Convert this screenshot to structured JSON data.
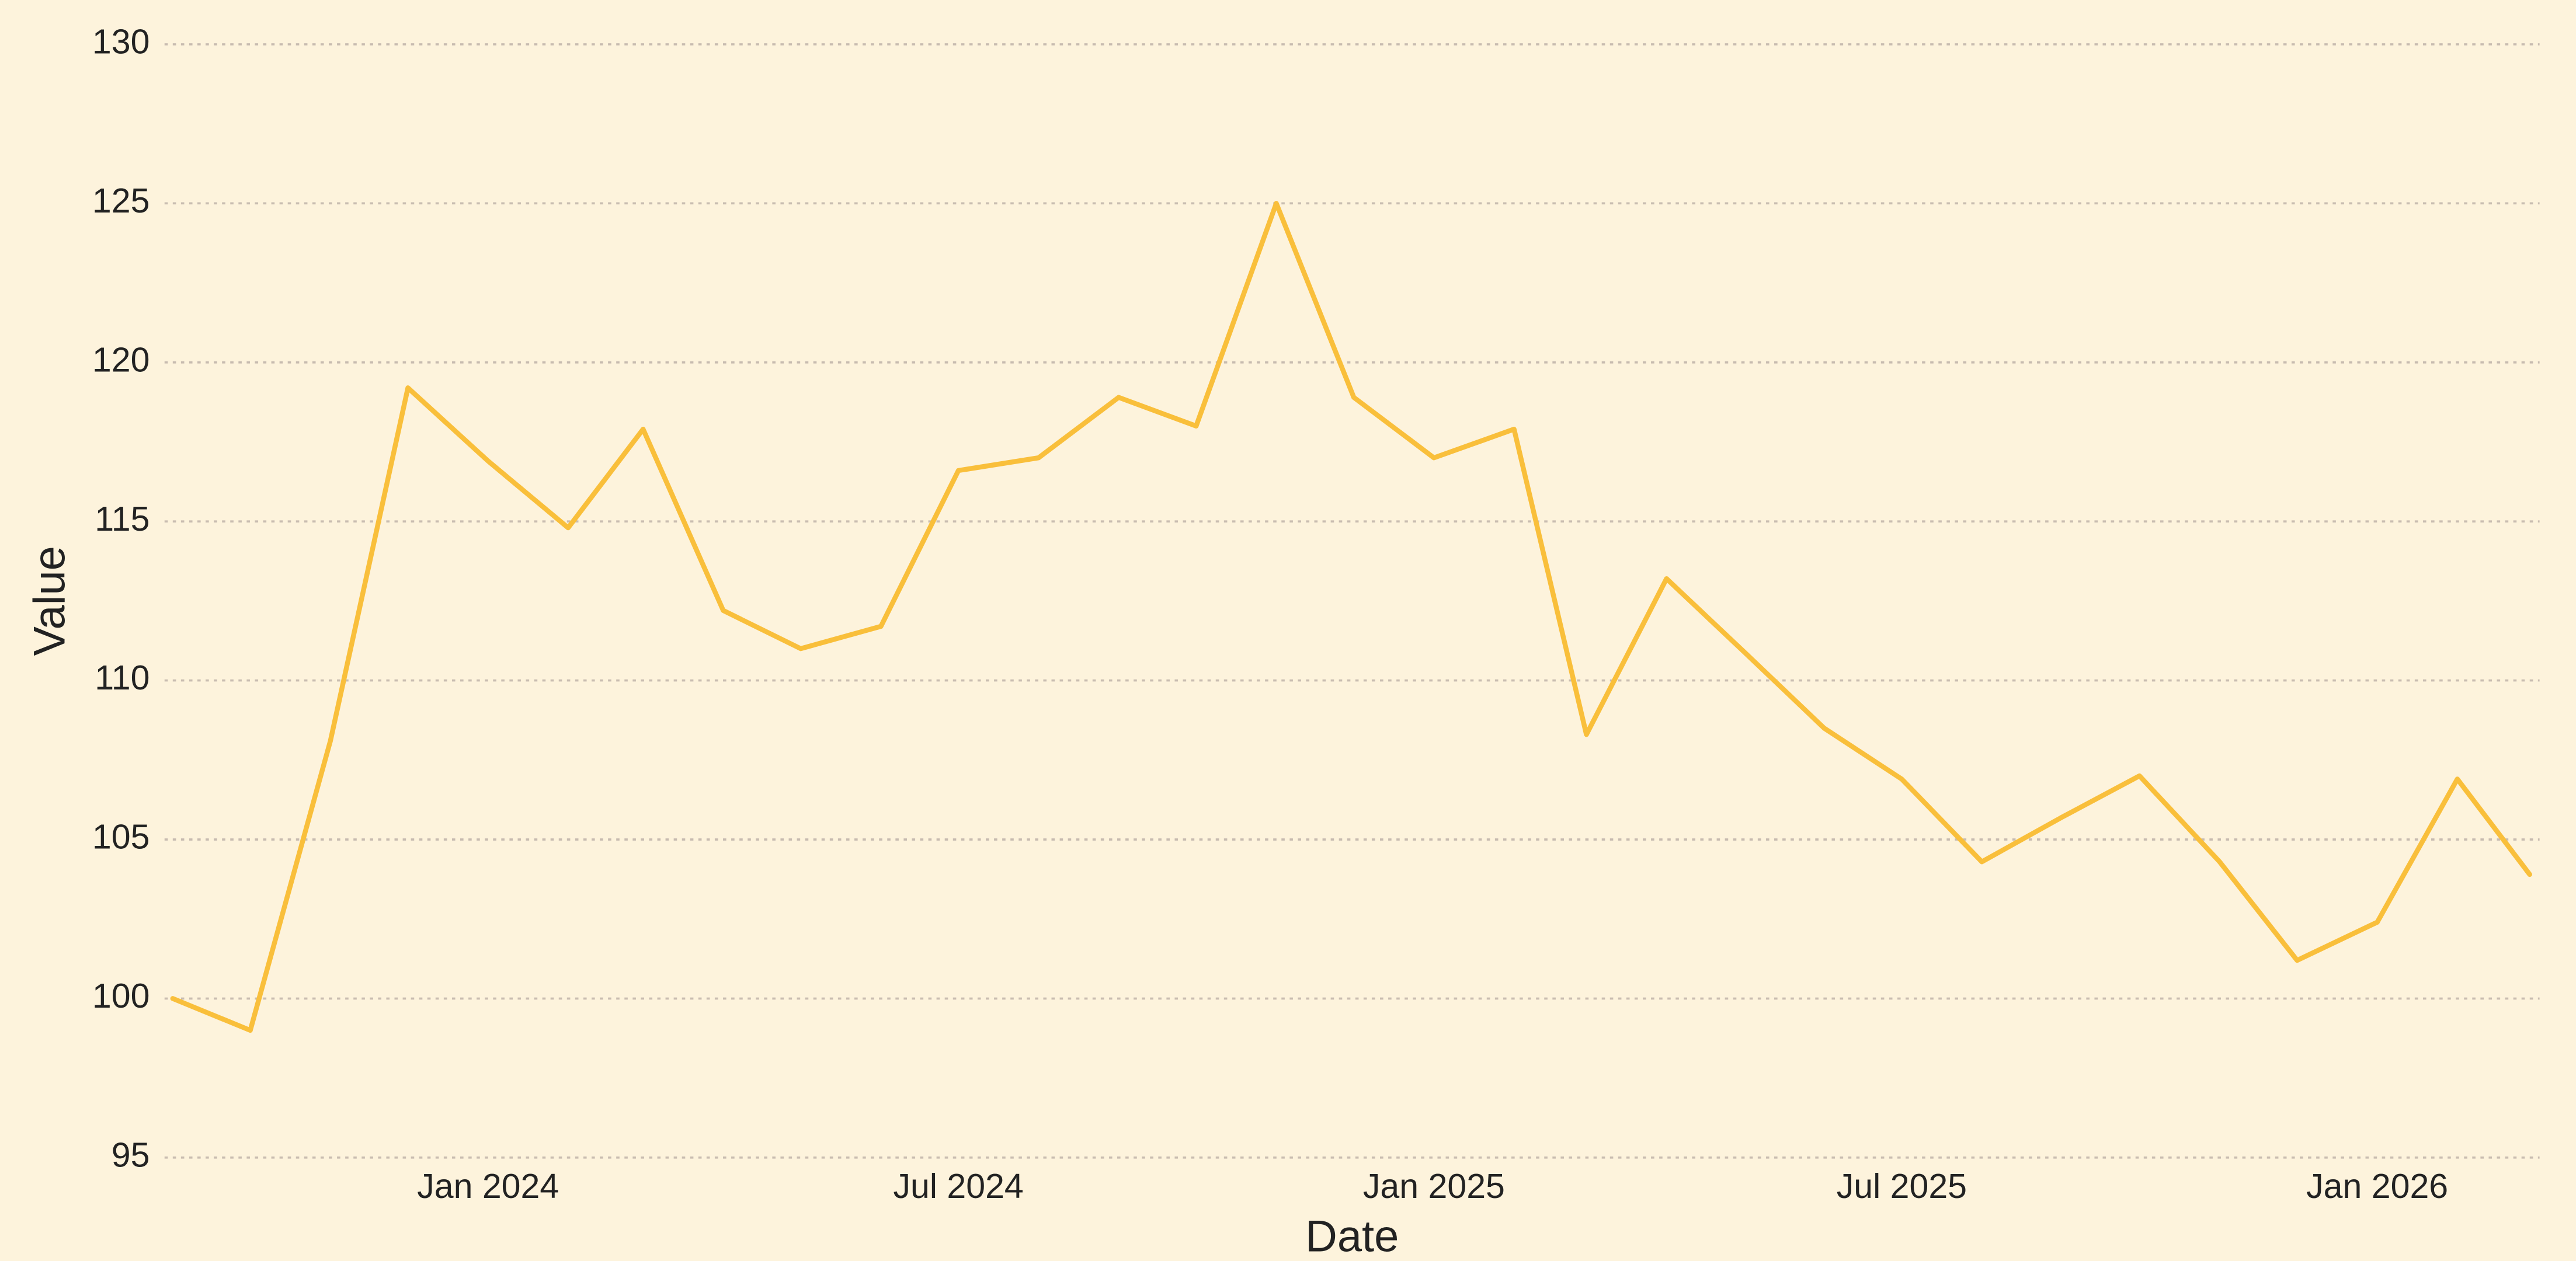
{
  "chart_data": {
    "type": "line",
    "x_label": "Date",
    "y_label": "Value",
    "x": [
      "2023-09",
      "2023-10",
      "2023-11",
      "2023-12",
      "2024-01",
      "2024-02",
      "2024-03",
      "2024-04",
      "2024-05",
      "2024-06",
      "2024-07",
      "2024-08",
      "2024-09",
      "2024-10",
      "2024-11",
      "2024-12",
      "2025-01",
      "2025-02",
      "2025-03",
      "2025-04",
      "2025-05",
      "2025-06",
      "2025-07",
      "2025-08",
      "2025-09",
      "2025-10",
      "2025-11",
      "2025-12",
      "2026-01",
      "2026-02",
      "2026-03"
    ],
    "series": [
      {
        "name": "Value",
        "color": "#f9bf3b",
        "values": [
          100.0,
          99.0,
          108.1,
          119.2,
          116.9,
          114.8,
          117.9,
          112.2,
          111.0,
          111.7,
          116.6,
          117.0,
          118.9,
          118.0,
          125.0,
          118.9,
          117.0,
          117.9,
          108.3,
          113.2,
          110.9,
          108.5,
          106.9,
          104.3,
          105.7,
          107.0,
          104.3,
          101.2,
          102.4,
          106.9,
          103.9
        ]
      }
    ],
    "xlim": [
      "2023-09",
      "2026-03"
    ],
    "xticks": [
      {
        "value": "2024-01",
        "label": "Jan 2024"
      },
      {
        "value": "2024-07",
        "label": "Jul 2024"
      },
      {
        "value": "2025-01",
        "label": "Jan 2025"
      },
      {
        "value": "2025-07",
        "label": "Jul 2025"
      },
      {
        "value": "2026-01",
        "label": "Jan 2026"
      }
    ],
    "ylim": [
      95,
      130
    ],
    "yticks": [
      95,
      100,
      105,
      110,
      115,
      120,
      125,
      130
    ],
    "grid": true
  }
}
